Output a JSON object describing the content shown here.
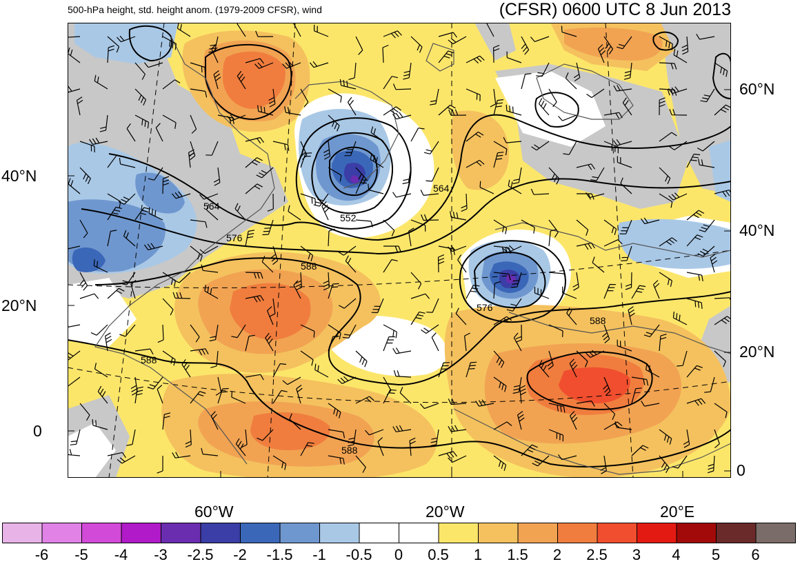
{
  "titles": {
    "left": "500-hPa height, std. height anom. (1979-2009 CFSR), wind",
    "right": "(CFSR) 0600 UTC 8 Jun 2013"
  },
  "axes": {
    "left_lat": [
      "40°N",
      "20°N",
      "0"
    ],
    "right_lat": [
      "60°N",
      "40°N",
      "20°N",
      "0"
    ],
    "lon": [
      "60°W",
      "20°W",
      "20°E"
    ]
  },
  "contour_labels": [
    "564",
    "552",
    "564",
    "576",
    "588",
    "576",
    "588",
    "588",
    "588"
  ],
  "colorbar": {
    "labels": [
      "-6",
      "-5",
      "-4",
      "-3",
      "-2.5",
      "-2",
      "-1.5",
      "-1",
      "-0.5",
      "0",
      "0.5",
      "1",
      "1.5",
      "2",
      "2.5",
      "3",
      "4",
      "5",
      "6"
    ],
    "colors": [
      "#e8b4e8",
      "#e082e6",
      "#d24ad8",
      "#b01ac8",
      "#6a2db0",
      "#3a3ea6",
      "#3b67b8",
      "#6f97cf",
      "#a9c8e6",
      "#ffffff",
      "#ffffff",
      "#fce66a",
      "#f4c15e",
      "#f1a352",
      "#f07d3e",
      "#f04e2e",
      "#e31a12",
      "#a10a08",
      "#6b2a2a",
      "#7a6c68"
    ]
  },
  "colors": {
    "ocean_land_gray": "#c8c8c8",
    "contour": "#000000",
    "coastline": "#555555"
  },
  "icons": [
    "wind-barb-icon"
  ]
}
